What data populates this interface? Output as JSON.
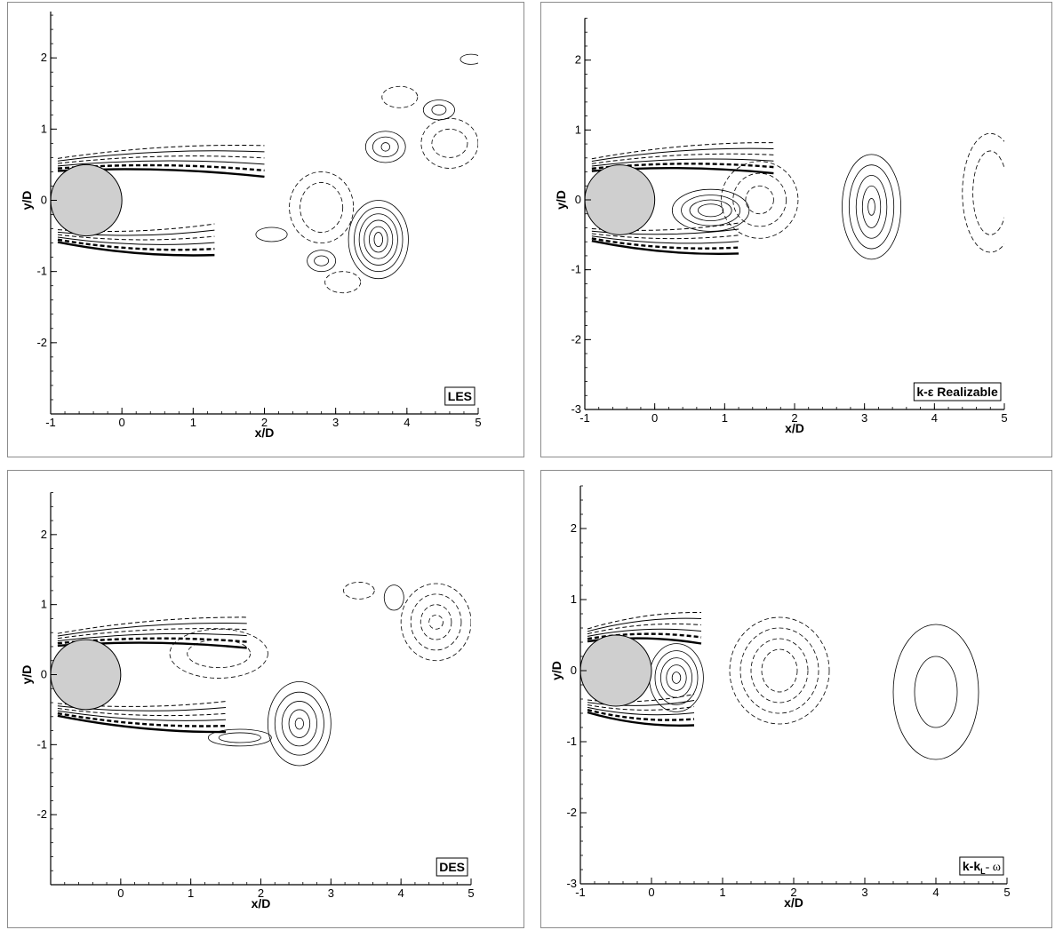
{
  "chart_data": [
    {
      "type": "contour",
      "model_label": "LES",
      "xlabel": "x/D",
      "ylabel": "y/D",
      "xlim": [
        -1,
        5
      ],
      "ylim": [
        -3,
        2.8
      ],
      "xticks": [
        -1,
        0,
        1,
        2,
        3,
        4,
        5
      ],
      "yticks": [
        -2,
        -1,
        0,
        1,
        2
      ],
      "cylinder": {
        "center": [
          -0.5,
          0
        ],
        "radius": 0.5
      },
      "solid_contours": [
        {
          "center": [
            3.6,
            -0.55
          ],
          "radii": [
            [
              0.42,
              0.55
            ],
            [
              0.34,
              0.45
            ],
            [
              0.27,
              0.36
            ],
            [
              0.2,
              0.27
            ],
            [
              0.13,
              0.18
            ],
            [
              0.06,
              0.1
            ]
          ]
        },
        {
          "center": [
            3.7,
            0.75
          ],
          "radii": [
            [
              0.28,
              0.22
            ],
            [
              0.18,
              0.14
            ],
            [
              0.06,
              0.06
            ]
          ]
        },
        {
          "center": [
            4.45,
            1.27
          ],
          "radii": [
            [
              0.22,
              0.14
            ],
            [
              0.1,
              0.07
            ]
          ]
        },
        {
          "center": [
            2.1,
            -0.48
          ],
          "radii": [
            [
              0.22,
              0.1
            ]
          ]
        },
        {
          "center": [
            2.8,
            -0.85
          ],
          "radii": [
            [
              0.2,
              0.15
            ],
            [
              0.1,
              0.07
            ]
          ]
        },
        {
          "center": [
            4.9,
            1.98
          ],
          "radii": [
            [
              0.15,
              0.07
            ]
          ]
        }
      ],
      "dashed_contours": [
        {
          "center": [
            2.8,
            -0.1
          ],
          "radii": [
            [
              0.45,
              0.5
            ],
            [
              0.3,
              0.35
            ]
          ]
        },
        {
          "center": [
            4.6,
            0.8
          ],
          "radii": [
            [
              0.4,
              0.35
            ],
            [
              0.25,
              0.2
            ]
          ]
        },
        {
          "center": [
            3.1,
            -1.15
          ],
          "radii": [
            [
              0.25,
              0.15
            ]
          ]
        },
        {
          "center": [
            3.9,
            1.45
          ],
          "radii": [
            [
              0.25,
              0.15
            ]
          ]
        }
      ],
      "shear_layer_upper": {
        "from": [
          -0.9,
          0.5
        ],
        "to": [
          2.0,
          0.55
        ]
      },
      "shear_layer_lower": {
        "from": [
          -0.9,
          -0.5
        ],
        "to": [
          1.3,
          -0.55
        ]
      }
    },
    {
      "type": "contour",
      "model_label": "k-ε Realizable",
      "xlabel": "x/D",
      "ylabel": "y/D",
      "xlim": [
        -1,
        5
      ],
      "ylim": [
        -3,
        2.6
      ],
      "xticks": [
        -1,
        0,
        1,
        2,
        3,
        4,
        5
      ],
      "yticks": [
        -3,
        -2,
        -1,
        0,
        1,
        2
      ],
      "cylinder": {
        "center": [
          -0.5,
          0
        ],
        "radius": 0.5
      },
      "solid_contours": [
        {
          "center": [
            3.1,
            -0.1
          ],
          "radii": [
            [
              0.42,
              0.75
            ],
            [
              0.32,
              0.6
            ],
            [
              0.22,
              0.45
            ],
            [
              0.13,
              0.3
            ],
            [
              0.05,
              0.12
            ]
          ]
        },
        {
          "center": [
            0.8,
            -0.15
          ],
          "radii": [
            [
              0.55,
              0.3
            ],
            [
              0.42,
              0.22
            ],
            [
              0.3,
              0.15
            ],
            [
              0.18,
              0.09
            ]
          ]
        }
      ],
      "dashed_contours": [
        {
          "center": [
            1.5,
            0.0
          ],
          "radii": [
            [
              0.55,
              0.55
            ],
            [
              0.38,
              0.38
            ],
            [
              0.2,
              0.2
            ]
          ]
        },
        {
          "center": [
            4.8,
            0.1
          ],
          "radii": [
            [
              0.4,
              0.85
            ],
            [
              0.25,
              0.6
            ]
          ]
        }
      ],
      "shear_layer_upper": {
        "from": [
          -0.9,
          0.5
        ],
        "to": [
          1.7,
          0.6
        ]
      },
      "shear_layer_lower": {
        "from": [
          -0.9,
          -0.5
        ],
        "to": [
          1.2,
          -0.55
        ]
      }
    },
    {
      "type": "contour",
      "model_label": "DES",
      "xlabel": "x/D",
      "ylabel": "y/D",
      "xlim": [
        -1,
        5
      ],
      "ylim": [
        -3,
        2.6
      ],
      "xticks": [
        0,
        1,
        2,
        3,
        4,
        5
      ],
      "yticks": [
        -2,
        -1,
        0,
        1,
        2
      ],
      "cylinder": {
        "center": [
          -0.5,
          0
        ],
        "radius": 0.5
      },
      "solid_contours": [
        {
          "center": [
            2.55,
            -0.7
          ],
          "radii": [
            [
              0.45,
              0.6
            ],
            [
              0.35,
              0.45
            ],
            [
              0.25,
              0.32
            ],
            [
              0.15,
              0.2
            ],
            [
              0.06,
              0.08
            ]
          ]
        },
        {
          "center": [
            1.7,
            -0.9
          ],
          "radii": [
            [
              0.45,
              0.12
            ],
            [
              0.3,
              0.07
            ]
          ]
        },
        {
          "center": [
            3.9,
            1.1
          ],
          "radii": [
            [
              0.14,
              0.18
            ]
          ]
        }
      ],
      "dashed_contours": [
        {
          "center": [
            4.5,
            0.75
          ],
          "radii": [
            [
              0.5,
              0.55
            ],
            [
              0.36,
              0.4
            ],
            [
              0.22,
              0.25
            ],
            [
              0.1,
              0.1
            ]
          ]
        },
        {
          "center": [
            1.4,
            0.3
          ],
          "radii": [
            [
              0.7,
              0.35
            ],
            [
              0.45,
              0.2
            ]
          ]
        },
        {
          "center": [
            3.4,
            1.2
          ],
          "radii": [
            [
              0.22,
              0.12
            ]
          ]
        }
      ],
      "shear_layer_upper": {
        "from": [
          -0.9,
          0.5
        ],
        "to": [
          1.8,
          0.6
        ]
      },
      "shear_layer_lower": {
        "from": [
          -0.9,
          -0.5
        ],
        "to": [
          1.5,
          -0.6
        ]
      }
    },
    {
      "type": "contour",
      "model_label": "k-k",
      "model_label_sub": "L",
      "model_label_tail": "- ω",
      "xlabel": "x/D",
      "ylabel": "y/D",
      "xlim": [
        -1,
        5
      ],
      "ylim": [
        -3,
        2.6
      ],
      "xticks": [
        -1,
        0,
        1,
        2,
        3,
        4,
        5
      ],
      "yticks": [
        -3,
        -2,
        -1,
        0,
        1,
        2
      ],
      "cylinder": {
        "center": [
          -0.5,
          0
        ],
        "radius": 0.5
      },
      "solid_contours": [
        {
          "center": [
            4.0,
            -0.3
          ],
          "radii": [
            [
              0.6,
              0.95
            ],
            [
              0.3,
              0.5
            ]
          ]
        },
        {
          "center": [
            0.35,
            -0.1
          ],
          "radii": [
            [
              0.38,
              0.48
            ],
            [
              0.3,
              0.38
            ],
            [
              0.22,
              0.28
            ],
            [
              0.14,
              0.18
            ],
            [
              0.06,
              0.08
            ]
          ]
        }
      ],
      "dashed_contours": [
        {
          "center": [
            1.8,
            0.0
          ],
          "radii": [
            [
              0.7,
              0.75
            ],
            [
              0.55,
              0.6
            ],
            [
              0.4,
              0.45
            ],
            [
              0.25,
              0.3
            ]
          ]
        }
      ],
      "shear_layer_upper": {
        "from": [
          -0.9,
          0.5
        ],
        "to": [
          0.7,
          0.6
        ]
      },
      "shear_layer_lower": {
        "from": [
          -0.9,
          -0.5
        ],
        "to": [
          0.6,
          -0.55
        ]
      }
    }
  ]
}
